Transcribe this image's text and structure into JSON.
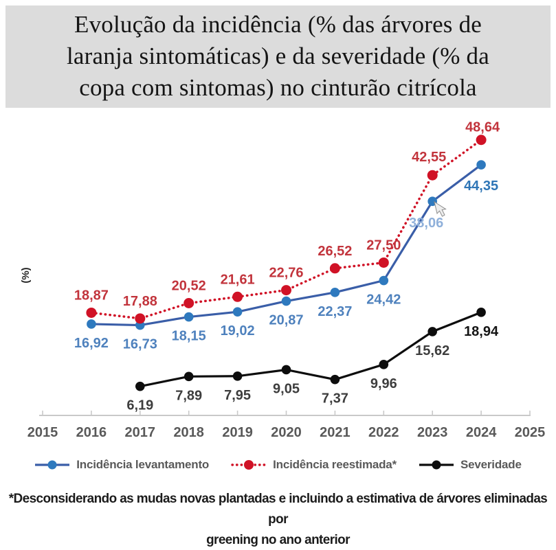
{
  "title": {
    "lines": [
      "Evolução da incidência (% das árvores de",
      "laranja sintomáticas) e da severidade (% da",
      "copa com sintomas) no cinturão citrícola"
    ]
  },
  "colors": {
    "title_background": "#dcdcdc",
    "axis": "#c9c9c9",
    "tick_label": "#595959",
    "legend_text": "#595959",
    "blue_line": "#3a5ea8",
    "blue_marker": "#2e79be",
    "red_line": "#d01226",
    "black_line": "#0d0d0d"
  },
  "chart_data": {
    "type": "line",
    "title": "Evolução da incidência (% das árvores de laranja sintomáticas) e da severidade (% da copa com sintomas) no cinturão citrícola",
    "xlabel": "",
    "ylabel": "(%)",
    "x_ticks": [
      2015,
      2016,
      2017,
      2018,
      2019,
      2020,
      2021,
      2022,
      2023,
      2024,
      2025
    ],
    "xlim": [
      2015,
      2025
    ],
    "ylim": [
      0,
      55
    ],
    "grid": false,
    "legend_position": "bottom",
    "series": [
      {
        "name": "Incidência levantamento",
        "style": "solid",
        "color": "#3a5ea8",
        "marker_color": "#2e79be",
        "label_color": "#4e81bd",
        "label_position": "below",
        "label_color_overrides": {
          "7": "#8fb0da",
          "8": "#2e75b6"
        },
        "x": [
          2016,
          2017,
          2018,
          2019,
          2020,
          2021,
          2022,
          2023,
          2024
        ],
        "values": [
          16.92,
          16.73,
          18.15,
          19.02,
          20.87,
          22.37,
          24.42,
          38.06,
          44.35
        ],
        "display_values": [
          "16,92",
          "16,73",
          "18,15",
          "19,02",
          "20,87",
          "22,37",
          "24,42",
          "38,06",
          "44,35"
        ]
      },
      {
        "name": "Incidência reestimada*",
        "style": "dotted",
        "color": "#d01226",
        "marker_color": "#d01226",
        "label_color": "#c2343c",
        "label_position": "above",
        "label_color_overrides": {},
        "x": [
          2016,
          2017,
          2018,
          2019,
          2020,
          2021,
          2022,
          2023,
          2024
        ],
        "values": [
          18.87,
          17.88,
          20.52,
          21.61,
          22.76,
          26.52,
          27.5,
          42.55,
          48.64
        ],
        "display_values": [
          "18,87",
          "17,88",
          "20,52",
          "21,61",
          "22,76",
          "26,52",
          "27,50",
          "42,55",
          "48,64"
        ]
      },
      {
        "name": "Severidade",
        "style": "solid",
        "color": "#0d0d0d",
        "marker_color": "#0d0d0d",
        "label_color": "#3d3d3d",
        "label_position": "below",
        "label_color_overrides": {
          "7": "#141414"
        },
        "x": [
          2017,
          2018,
          2019,
          2020,
          2021,
          2022,
          2023,
          2024
        ],
        "values": [
          6.19,
          7.89,
          7.95,
          9.05,
          7.37,
          9.96,
          15.62,
          18.94
        ],
        "display_values": [
          "6,19",
          "7,89",
          "7,95",
          "9,05",
          "7,37",
          "9,96",
          "15,62",
          "18,94"
        ]
      }
    ]
  },
  "footnote": {
    "lines": [
      "*Desconsiderando as mudas novas plantadas e incluindo a estimativa de árvores eliminadas por",
      "greening no ano anterior"
    ]
  }
}
